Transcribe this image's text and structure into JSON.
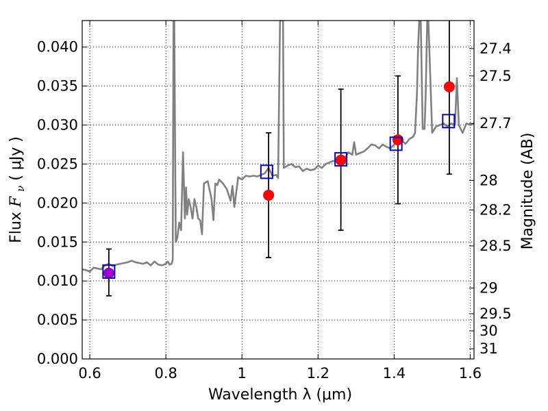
{
  "chart_data": {
    "type": "line",
    "xlabel": "Wavelength  λ (μm)",
    "ylabel": "Flux  F_ν  ( μJy )",
    "ylabel_parts": [
      "Flux  ",
      "F",
      "ν",
      "  ( μJy )"
    ],
    "ylabel_right": "Magnitude (AB)",
    "xlim": [
      0.58,
      1.61
    ],
    "ylim": [
      0.0,
      0.0434
    ],
    "grid": true,
    "x_ticks": [
      0.6,
      0.8,
      1.0,
      1.2,
      1.4,
      1.6
    ],
    "x_tick_labels": [
      "0.6",
      "0.8",
      "1",
      "1.2",
      "1.4",
      "1.6"
    ],
    "y_ticks": [
      0.0,
      0.005,
      0.01,
      0.015,
      0.02,
      0.025,
      0.03,
      0.035,
      0.04
    ],
    "y_tick_labels": [
      "0.000",
      "0.005",
      "0.010",
      "0.015",
      "0.020",
      "0.025",
      "0.030",
      "0.035",
      "0.040"
    ],
    "right_ticks": [
      {
        "label": "27.4",
        "flux": 0.0398
      },
      {
        "label": "27.5",
        "flux": 0.0363
      },
      {
        "label": "27.7",
        "flux": 0.0302
      },
      {
        "label": "28",
        "flux": 0.0229
      },
      {
        "label": "28.2",
        "flux": 0.0191
      },
      {
        "label": "28.5",
        "flux": 0.0145
      },
      {
        "label": "29",
        "flux": 0.0091
      },
      {
        "label": "29.5",
        "flux": 0.0058
      },
      {
        "label": "30",
        "flux": 0.0036
      },
      {
        "label": "31",
        "flux": 0.0013
      }
    ],
    "colors": {
      "spectrum": "#808080",
      "observed": "#ff0000",
      "model_box": "#0000cc",
      "errorbar": "#000000",
      "overlap": "#9900cc"
    },
    "series": [
      {
        "name": "model spectrum",
        "kind": "line",
        "x": [
          0.58,
          0.59,
          0.6,
          0.61,
          0.62,
          0.63,
          0.64,
          0.65,
          0.66,
          0.67,
          0.68,
          0.69,
          0.7,
          0.71,
          0.72,
          0.73,
          0.74,
          0.75,
          0.76,
          0.77,
          0.78,
          0.79,
          0.8,
          0.805,
          0.81,
          0.815,
          0.818,
          0.82,
          0.822,
          0.826,
          0.83,
          0.835,
          0.84,
          0.845,
          0.85,
          0.853,
          0.856,
          0.86,
          0.865,
          0.87,
          0.875,
          0.88,
          0.885,
          0.89,
          0.895,
          0.9,
          0.91,
          0.92,
          0.925,
          0.93,
          0.935,
          0.94,
          0.95,
          0.96,
          0.97,
          0.975,
          0.98,
          0.99,
          1.0,
          1.01,
          1.02,
          1.03,
          1.04,
          1.05,
          1.06,
          1.07,
          1.08,
          1.09,
          1.095,
          1.1,
          1.102,
          1.105,
          1.108,
          1.11,
          1.12,
          1.13,
          1.14,
          1.15,
          1.16,
          1.17,
          1.18,
          1.19,
          1.2,
          1.21,
          1.22,
          1.23,
          1.24,
          1.25,
          1.26,
          1.27,
          1.28,
          1.29,
          1.295,
          1.3,
          1.31,
          1.32,
          1.33,
          1.34,
          1.35,
          1.36,
          1.37,
          1.38,
          1.39,
          1.4,
          1.41,
          1.42,
          1.43,
          1.44,
          1.45,
          1.455,
          1.46,
          1.463,
          1.466,
          1.47,
          1.475,
          1.48,
          1.483,
          1.487,
          1.49,
          1.5,
          1.51,
          1.52,
          1.53,
          1.54,
          1.55,
          1.56,
          1.565,
          1.57,
          1.58,
          1.59,
          1.6,
          1.61
        ],
        "y": [
          0.0115,
          0.0114,
          0.0112,
          0.0117,
          0.0116,
          0.0115,
          0.012,
          0.0122,
          0.0119,
          0.0121,
          0.0122,
          0.0123,
          0.0124,
          0.0126,
          0.0124,
          0.0123,
          0.0122,
          0.0124,
          0.012,
          0.0125,
          0.0121,
          0.012,
          0.0122,
          0.0125,
          0.0121,
          0.0122,
          0.0127,
          0.0434,
          0.0434,
          0.015,
          0.0155,
          0.0175,
          0.0165,
          0.0265,
          0.018,
          0.022,
          0.0185,
          0.0205,
          0.0195,
          0.018,
          0.0205,
          0.0195,
          0.018,
          0.0178,
          0.016,
          0.0225,
          0.0228,
          0.0205,
          0.0178,
          0.0225,
          0.0223,
          0.023,
          0.0225,
          0.0218,
          0.0203,
          0.0222,
          0.0195,
          0.0233,
          0.023,
          0.0235,
          0.0234,
          0.0235,
          0.0234,
          0.0236,
          0.0238,
          0.0245,
          0.0235,
          0.0236,
          0.0232,
          0.0434,
          0.0434,
          0.0434,
          0.0434,
          0.0245,
          0.0248,
          0.025,
          0.0246,
          0.0247,
          0.0241,
          0.0244,
          0.0242,
          0.0243,
          0.0248,
          0.0245,
          0.025,
          0.0252,
          0.0254,
          0.0253,
          0.0257,
          0.0258,
          0.0265,
          0.0262,
          0.0278,
          0.0262,
          0.0264,
          0.0266,
          0.027,
          0.0275,
          0.0274,
          0.027,
          0.0275,
          0.0272,
          0.027,
          0.0275,
          0.0278,
          0.028,
          0.0276,
          0.0282,
          0.0285,
          0.029,
          0.034,
          0.04,
          0.0434,
          0.0434,
          0.0295,
          0.0295,
          0.034,
          0.0434,
          0.0434,
          0.029,
          0.0298,
          0.03,
          0.0302,
          0.0298,
          0.0302,
          0.03,
          0.036,
          0.03,
          0.029,
          0.0302,
          0.03,
          0.0302
        ]
      },
      {
        "name": "observed flux",
        "kind": "points",
        "marker": "circle",
        "x": [
          0.65,
          1.07,
          1.26,
          1.41,
          1.545
        ],
        "y": [
          0.011,
          0.021,
          0.0255,
          0.0281,
          0.0349
        ]
      },
      {
        "name": "error bars",
        "kind": "errorbar",
        "x": [
          0.65,
          1.07,
          1.26,
          1.41,
          1.545
        ],
        "ylow": [
          0.0081,
          0.013,
          0.0165,
          0.0199,
          0.0237
        ],
        "yhigh": [
          0.0141,
          0.029,
          0.0346,
          0.0363,
          0.0434
        ]
      },
      {
        "name": "model photometry",
        "kind": "points",
        "marker": "square",
        "x": [
          0.65,
          1.065,
          1.26,
          1.405,
          1.543
        ],
        "y": [
          0.0112,
          0.024,
          0.0256,
          0.0276,
          0.0305
        ]
      }
    ]
  }
}
